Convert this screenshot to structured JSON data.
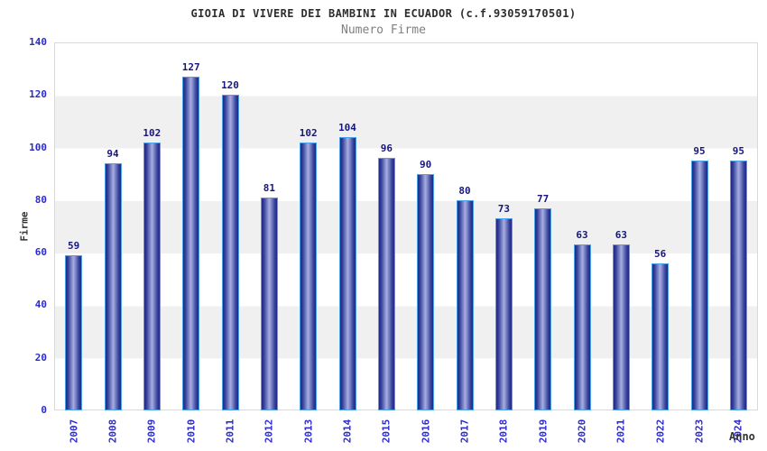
{
  "chart_data": {
    "type": "bar",
    "title": "GIOIA DI VIVERE DEI BAMBINI IN ECUADOR (c.f.93059170501)",
    "subtitle": "Numero Firme",
    "xlabel": "Anno",
    "ylabel": "Firme",
    "categories": [
      "2007",
      "2008",
      "2009",
      "2010",
      "2011",
      "2012",
      "2013",
      "2014",
      "2015",
      "2016",
      "2017",
      "2018",
      "2019",
      "2020",
      "2021",
      "2022",
      "2023",
      "2024"
    ],
    "values": [
      59,
      94,
      102,
      127,
      120,
      81,
      102,
      104,
      96,
      90,
      80,
      73,
      77,
      63,
      63,
      56,
      95,
      95
    ],
    "ylim": [
      0,
      140
    ],
    "ytick_step": 20,
    "yticks": [
      0,
      20,
      40,
      60,
      80,
      100,
      120,
      140
    ],
    "legend": "none",
    "grid": "alternating horizontal bands every 20 units",
    "bar_value_labels": true,
    "colors": {
      "title": "#2e2e2e",
      "subtitle": "#808080",
      "axis_titles": "#333333",
      "tick_labels": "#2b2bcc",
      "value_labels": "#16167c",
      "bar_edge": "#4ba2e8",
      "bar_dark": "#1e2884",
      "bar_mid": "#39449e",
      "bar_light": "#a8afe0",
      "band_white": "#ffffff",
      "band_gray": "#f0f0f0",
      "plot_border": "#d9d9d9"
    }
  }
}
